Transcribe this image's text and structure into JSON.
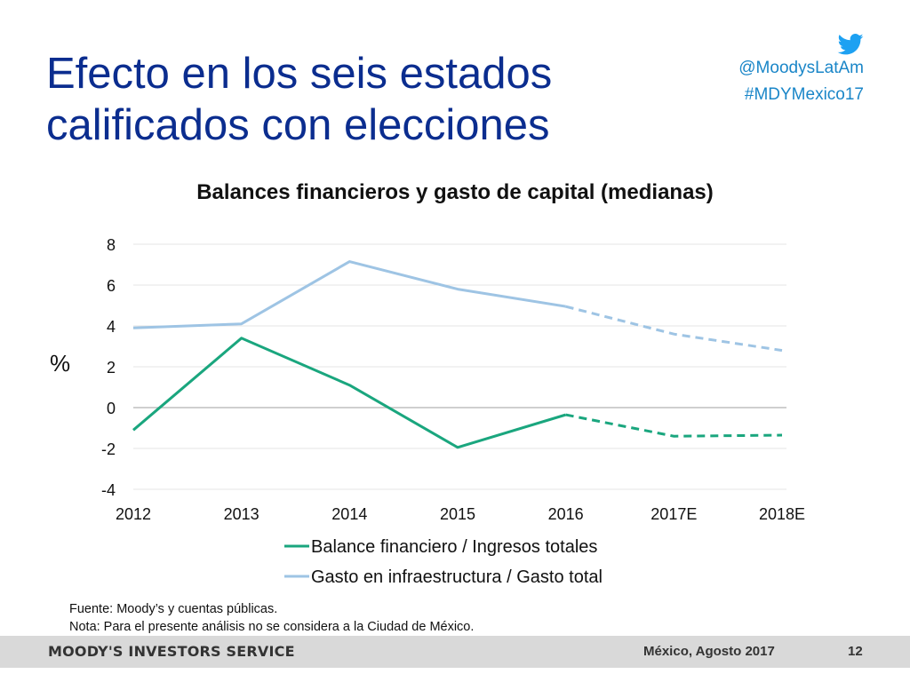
{
  "slide": {
    "title_line1": "Efecto en los seis estados",
    "title_line2": "calificados con elecciones",
    "twitter_icon": "twitter-bird-icon",
    "twitter_handle": "@MoodysLatAm",
    "hashtag": "#MDYMexico17",
    "source_note": "Fuente: Moody’s y cuentas públicas.",
    "note": "Nota: Para el presente análisis no se considera a la Ciudad de México.",
    "footer_brand": "MOODY'S INVESTORS SERVICE",
    "footer_date": "México, Agosto 2017",
    "page_number": "12",
    "title_color": "#0b2d8f",
    "social_color": "#1a86c8"
  },
  "chart_data": {
    "type": "line",
    "title": "Balances financieros  y gasto de capital (medianas)",
    "ylabel": "%",
    "xlabel": "",
    "categories": [
      "2012",
      "2013",
      "2014",
      "2015",
      "2016",
      "2017E",
      "2018E"
    ],
    "ylim": [
      -4,
      8
    ],
    "yticks": [
      -4,
      -2,
      0,
      2,
      4,
      6,
      8
    ],
    "ytick_labels": [
      "-4",
      "-2",
      "0",
      "2",
      "4",
      "6",
      "8"
    ],
    "grid": true,
    "legend_position": "bottom",
    "dashed_from_index": 4,
    "series": [
      {
        "name": "Balance financiero / Ingresos totales",
        "color": "#1aa67e",
        "values": [
          -1.1,
          3.4,
          1.1,
          -1.95,
          -0.35,
          -1.4,
          -1.35
        ]
      },
      {
        "name": "Gasto en infraestructura / Gasto total",
        "color": "#9ec4e4",
        "values": [
          3.9,
          4.1,
          7.15,
          5.8,
          4.95,
          3.6,
          2.8
        ]
      }
    ]
  }
}
